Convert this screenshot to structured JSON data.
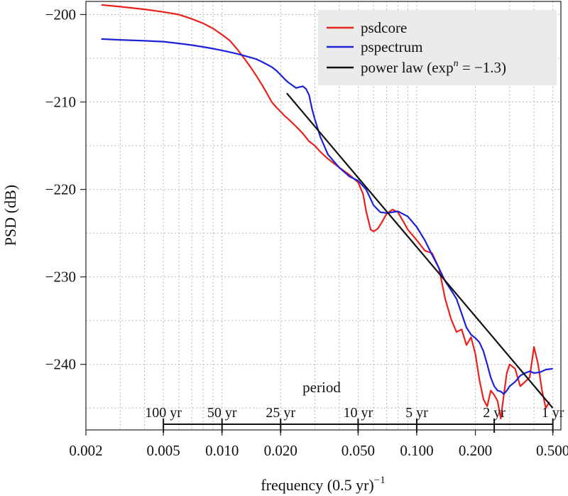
{
  "chart_data": {
    "type": "line",
    "xlabel": "frequency (0.5 yr)",
    "xlabel_sup": "−1",
    "ylabel": "PSD (dB)",
    "x_scale": "log",
    "xlim": [
      0.002,
      0.55
    ],
    "ylim": [
      -247.5,
      -198.5
    ],
    "x_ticks": [
      0.002,
      0.005,
      0.01,
      0.02,
      0.05,
      0.1,
      0.2,
      0.5
    ],
    "x_tick_labels": [
      "0.002",
      "0.005",
      "0.010",
      "0.020",
      "0.050",
      "0.100",
      "0.200",
      "0.500"
    ],
    "y_ticks": [
      -200,
      -210,
      -220,
      -230,
      -240
    ],
    "y_tick_labels": [
      "−200",
      "−210",
      "−220",
      "−230",
      "−240"
    ],
    "grid": true,
    "legend_position": "top-right",
    "period_axis": {
      "title": "period",
      "ticks": [
        {
          "frequency": 0.005,
          "label": "100 yr"
        },
        {
          "frequency": 0.01,
          "label": "50 yr"
        },
        {
          "frequency": 0.02,
          "label": "25 yr"
        },
        {
          "frequency": 0.05,
          "label": "10 yr"
        },
        {
          "frequency": 0.1,
          "label": "5 yr"
        },
        {
          "frequency": 0.25,
          "label": "2 yr"
        },
        {
          "frequency": 0.5,
          "label": "1 yr"
        }
      ]
    },
    "series": [
      {
        "name": "psdcore",
        "color": "#e8221c",
        "x": [
          0.0024,
          0.003,
          0.004,
          0.005,
          0.006,
          0.007,
          0.008,
          0.009,
          0.01,
          0.011,
          0.012,
          0.013,
          0.014,
          0.015,
          0.016,
          0.017,
          0.018,
          0.019,
          0.02,
          0.021,
          0.022,
          0.024,
          0.026,
          0.028,
          0.03,
          0.032,
          0.035,
          0.04,
          0.045,
          0.05,
          0.053,
          0.055,
          0.058,
          0.06,
          0.063,
          0.066,
          0.07,
          0.075,
          0.08,
          0.085,
          0.09,
          0.1,
          0.11,
          0.12,
          0.13,
          0.14,
          0.15,
          0.16,
          0.17,
          0.18,
          0.19,
          0.2,
          0.21,
          0.22,
          0.23,
          0.24,
          0.25,
          0.26,
          0.27,
          0.28,
          0.29,
          0.3,
          0.32,
          0.34,
          0.36,
          0.38,
          0.4,
          0.42,
          0.44,
          0.46,
          0.48
        ],
        "y": [
          -198.9,
          -199.1,
          -199.4,
          -199.7,
          -200.0,
          -200.5,
          -201.0,
          -201.6,
          -202.3,
          -203.0,
          -204.0,
          -205.0,
          -206.0,
          -207.0,
          -208.0,
          -209.0,
          -210.0,
          -210.6,
          -211.1,
          -211.6,
          -212.0,
          -212.8,
          -213.6,
          -214.5,
          -215.0,
          -215.7,
          -216.5,
          -217.5,
          -218.3,
          -219.2,
          -220.5,
          -222.5,
          -224.6,
          -224.8,
          -224.5,
          -223.8,
          -222.8,
          -222.3,
          -222.6,
          -223.6,
          -224.6,
          -225.8,
          -227.0,
          -227.3,
          -229.0,
          -232.5,
          -234.8,
          -236.3,
          -236.0,
          -237.8,
          -236.9,
          -238.8,
          -241.8,
          -244.0,
          -244.8,
          -243.0,
          -243.5,
          -244.2,
          -246.2,
          -243.5,
          -241.0,
          -240.0,
          -240.5,
          -242.5,
          -242.0,
          -241.5,
          -238.0,
          -240.0,
          -243.0,
          -245.0,
          -244.3
        ]
      },
      {
        "name": "pspectrum",
        "color": "#1c22d6",
        "x": [
          0.0024,
          0.003,
          0.004,
          0.005,
          0.006,
          0.007,
          0.008,
          0.009,
          0.01,
          0.011,
          0.012,
          0.013,
          0.014,
          0.015,
          0.016,
          0.017,
          0.018,
          0.019,
          0.02,
          0.021,
          0.022,
          0.023,
          0.024,
          0.025,
          0.026,
          0.027,
          0.028,
          0.029,
          0.03,
          0.032,
          0.035,
          0.04,
          0.045,
          0.05,
          0.055,
          0.06,
          0.065,
          0.07,
          0.075,
          0.08,
          0.09,
          0.1,
          0.11,
          0.12,
          0.13,
          0.14,
          0.15,
          0.16,
          0.17,
          0.18,
          0.19,
          0.2,
          0.21,
          0.22,
          0.23,
          0.24,
          0.25,
          0.26,
          0.27,
          0.28,
          0.29,
          0.3,
          0.32,
          0.34,
          0.36,
          0.38,
          0.4,
          0.43,
          0.46,
          0.5
        ],
        "y": [
          -202.8,
          -202.9,
          -203.0,
          -203.1,
          -203.3,
          -203.5,
          -203.7,
          -203.9,
          -204.1,
          -204.3,
          -204.5,
          -204.7,
          -204.9,
          -205.1,
          -205.4,
          -205.7,
          -206.0,
          -206.4,
          -206.9,
          -207.4,
          -207.8,
          -208.1,
          -208.4,
          -208.3,
          -208.2,
          -208.5,
          -209.2,
          -210.8,
          -212.0,
          -214.0,
          -216.0,
          -217.5,
          -218.5,
          -219.0,
          -220.0,
          -221.8,
          -222.6,
          -222.7,
          -222.6,
          -222.5,
          -223.1,
          -224.3,
          -225.8,
          -227.5,
          -229.0,
          -230.5,
          -231.5,
          -232.5,
          -234.2,
          -235.8,
          -236.6,
          -237.0,
          -237.5,
          -238.5,
          -240.0,
          -241.5,
          -242.5,
          -243.0,
          -243.1,
          -243.4,
          -243.0,
          -242.5,
          -242.0,
          -241.3,
          -241.0,
          -240.8,
          -241.0,
          -240.9,
          -240.6,
          -240.5
        ]
      },
      {
        "name": "power law (exp",
        "name_sup": "n",
        "name_suffix": " = −1.3)",
        "color": "#111111",
        "x": [
          0.0215,
          0.5
        ],
        "y": [
          -209.0,
          -245.0
        ]
      }
    ]
  }
}
